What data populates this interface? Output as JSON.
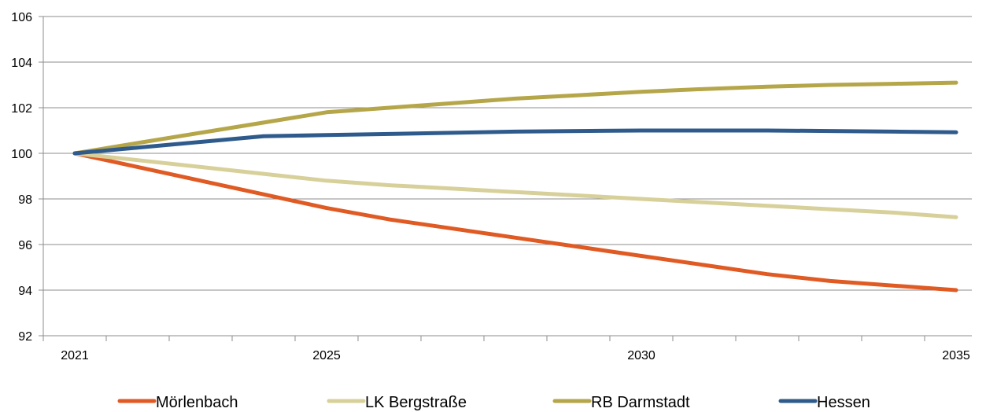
{
  "chart_data": {
    "type": "line",
    "x": [
      2021,
      2022,
      2023,
      2024,
      2025,
      2026,
      2027,
      2028,
      2029,
      2030,
      2031,
      2032,
      2033,
      2034,
      2035
    ],
    "x_tick_labels": [
      "2021",
      "2025",
      "2030",
      "2035"
    ],
    "ylim": [
      92,
      106
    ],
    "y_ticks": [
      92,
      94,
      96,
      98,
      100,
      102,
      104,
      106
    ],
    "grid": "horizontal",
    "legend_position": "bottom",
    "series": [
      {
        "name": "Mörlenbach",
        "color": "#e05a24",
        "values": [
          100,
          99.4,
          98.8,
          98.2,
          97.6,
          97.1,
          96.7,
          96.3,
          95.9,
          95.5,
          95.1,
          94.7,
          94.4,
          94.2,
          94.0
        ]
      },
      {
        "name": "LK Bergstraße",
        "color": "#d8d09a",
        "values": [
          100,
          99.7,
          99.4,
          99.1,
          98.8,
          98.6,
          98.45,
          98.3,
          98.15,
          98.0,
          97.85,
          97.7,
          97.55,
          97.4,
          97.2
        ]
      },
      {
        "name": "RB Darmstadt",
        "color": "#b5a64a",
        "values": [
          100,
          100.45,
          100.9,
          101.35,
          101.8,
          102.0,
          102.2,
          102.4,
          102.55,
          102.7,
          102.82,
          102.92,
          103.0,
          103.05,
          103.1
        ]
      },
      {
        "name": "Hessen",
        "color": "#2f5b8c",
        "values": [
          100,
          100.25,
          100.5,
          100.75,
          100.8,
          100.85,
          100.9,
          100.95,
          100.98,
          101.0,
          101.0,
          101.0,
          100.98,
          100.95,
          100.92
        ]
      }
    ]
  }
}
